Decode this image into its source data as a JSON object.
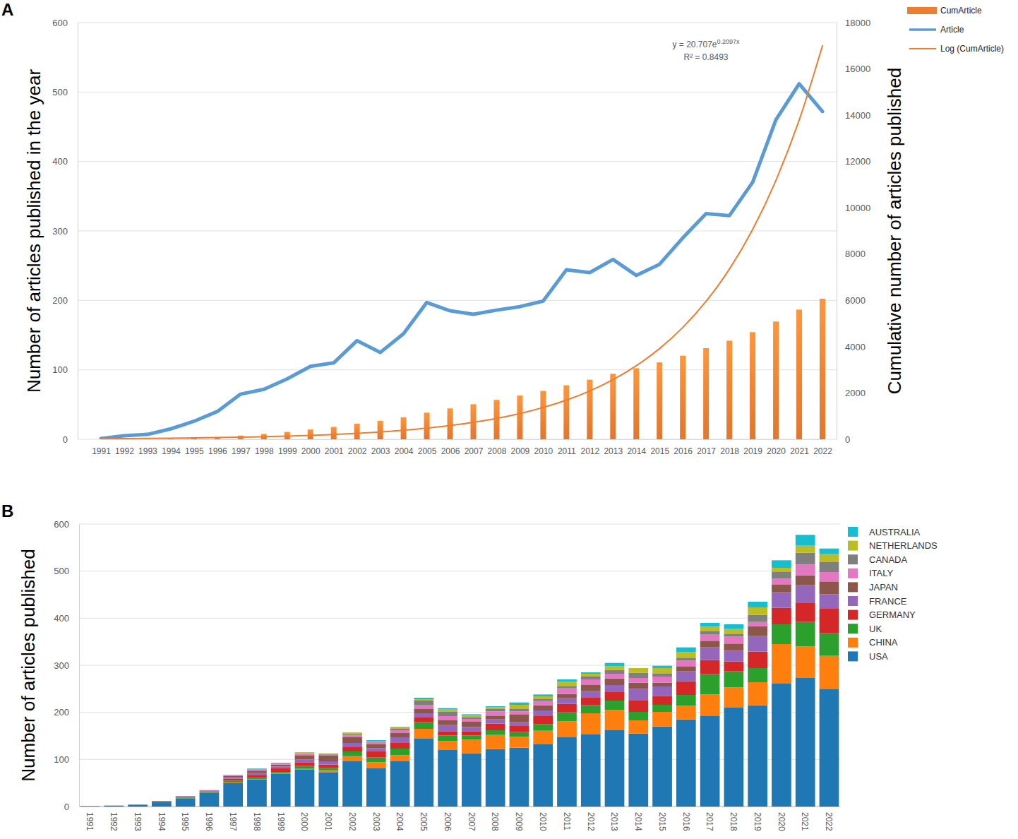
{
  "chart_data": [
    {
      "type": "bar",
      "title": "A",
      "y_label": "Number of articles published in the year",
      "y2_label": "Cumulative number of articles published",
      "annotations": [
        {
          "text": "y = 20.707e",
          "superscript": "0.2097x"
        },
        {
          "text": "R² = 0.8493"
        }
      ],
      "categories": [
        "1991",
        "1992",
        "1993",
        "1994",
        "1995",
        "1996",
        "1997",
        "1998",
        "1999",
        "2000",
        "2001",
        "2002",
        "2003",
        "2004",
        "2005",
        "2006",
        "2007",
        "2008",
        "2009",
        "2010",
        "2011",
        "2012",
        "2013",
        "2014",
        "2015",
        "2016",
        "2017",
        "2018",
        "2019",
        "2020",
        "2021",
        "2022"
      ],
      "series": [
        {
          "name": "CumArticle",
          "type": "bar",
          "axis": "y2",
          "color": "#ed7d31",
          "values": [
            1,
            6,
            13,
            28,
            54,
            94,
            159,
            231,
            318,
            423,
            533,
            675,
            800,
            952,
            1149,
            1334,
            1514,
            1700,
            1891,
            2090,
            2334,
            2574,
            2833,
            3069,
            3321,
            3611,
            3936,
            4258,
            4628,
            5088,
            5600,
            6072
          ]
        },
        {
          "name": "Article",
          "type": "line",
          "color": "#5b9bd5",
          "line_style": "solid",
          "values": [
            1,
            5,
            7,
            15,
            26,
            40,
            65,
            72,
            87,
            105,
            110,
            142,
            125,
            152,
            197,
            185,
            180,
            186,
            191,
            199,
            244,
            240,
            259,
            236,
            252,
            290,
            325,
            322,
            370,
            460,
            512,
            472
          ]
        },
        {
          "name": "Log (CumArticle)",
          "type": "line",
          "axis": "y2",
          "color": "#ed7d31",
          "line_style": "smooth",
          "values": [
            26,
            32,
            39,
            48,
            59,
            73,
            90,
            111,
            137,
            169,
            208,
            256,
            316,
            390,
            481,
            593,
            732,
            903,
            1113,
            1373,
            1693,
            2088,
            2575,
            3176,
            3917,
            4831,
            5958,
            7348,
            9062,
            11177,
            13785,
            17001
          ]
        }
      ],
      "ylim": [
        0,
        600
      ],
      "yticks": [
        0,
        100,
        200,
        300,
        400,
        500,
        600
      ],
      "y2lim": [
        0,
        18000
      ],
      "y2ticks": [
        0,
        2000,
        4000,
        6000,
        8000,
        10000,
        12000,
        14000,
        16000,
        18000
      ],
      "grid": true,
      "legend": "top-right"
    },
    {
      "type": "bar",
      "title": "B",
      "stacked": true,
      "y_label": "Number of articles published",
      "categories": [
        "1991",
        "1992",
        "1993",
        "1994",
        "1995",
        "1996",
        "1997",
        "1998",
        "1999",
        "2000",
        "2001",
        "2002",
        "2003",
        "2004",
        "2005",
        "2006",
        "2007",
        "2008",
        "2009",
        "2010",
        "2011",
        "2012",
        "2013",
        "2014",
        "2015",
        "2016",
        "2017",
        "2018",
        "2019",
        "2020",
        "2021",
        "2022"
      ],
      "series": [
        {
          "name": "USA",
          "color": "#1f77b4",
          "values": [
            1,
            2,
            4,
            10,
            17,
            29,
            50,
            57,
            69,
            78,
            72,
            97,
            82,
            97,
            145,
            120,
            113,
            122,
            125,
            133,
            147,
            153,
            163,
            155,
            170,
            185,
            193,
            210,
            215,
            262,
            273,
            250
          ]
        },
        {
          "name": "CHINA",
          "color": "#ff7f0e",
          "values": [
            0,
            0,
            0,
            0,
            0,
            0,
            1,
            1,
            1,
            2,
            5,
            10,
            12,
            12,
            20,
            19,
            29,
            30,
            23,
            28,
            34,
            45,
            42,
            28,
            31,
            29,
            45,
            43,
            49,
            83,
            67,
            70
          ]
        },
        {
          "name": "UK",
          "color": "#2ca02c",
          "values": [
            0,
            0,
            0,
            1,
            2,
            2,
            4,
            3,
            3,
            6,
            5,
            10,
            10,
            14,
            14,
            12,
            9,
            10,
            10,
            14,
            19,
            17,
            20,
            18,
            15,
            23,
            43,
            34,
            30,
            42,
            52,
            48
          ]
        },
        {
          "name": "GERMANY",
          "color": "#d62728",
          "values": [
            0,
            0,
            0,
            0,
            1,
            1,
            4,
            5,
            9,
            8,
            7,
            9,
            14,
            12,
            10,
            9,
            9,
            14,
            13,
            17,
            18,
            16,
            18,
            24,
            19,
            29,
            30,
            21,
            35,
            35,
            40,
            52
          ]
        },
        {
          "name": "FRANCE",
          "color": "#9467bd",
          "values": [
            0,
            0,
            0,
            0,
            1,
            1,
            3,
            5,
            3,
            6,
            7,
            9,
            6,
            12,
            9,
            13,
            9,
            9,
            8,
            12,
            12,
            14,
            15,
            25,
            20,
            21,
            27,
            23,
            33,
            33,
            38,
            31
          ]
        },
        {
          "name": "JAPAN",
          "color": "#8c564b",
          "values": [
            0,
            0,
            0,
            1,
            1,
            1,
            3,
            5,
            4,
            9,
            12,
            12,
            8,
            9,
            9,
            11,
            11,
            8,
            17,
            11,
            9,
            13,
            14,
            13,
            8,
            11,
            14,
            15,
            21,
            16,
            21,
            27
          ]
        },
        {
          "name": "ITALY",
          "color": "#e377c2",
          "values": [
            0,
            0,
            0,
            0,
            0,
            1,
            1,
            2,
            3,
            3,
            2,
            4,
            5,
            6,
            8,
            8,
            6,
            9,
            6,
            9,
            12,
            12,
            10,
            10,
            13,
            12,
            13,
            15,
            9,
            13,
            23,
            20
          ]
        },
        {
          "name": "CANADA",
          "color": "#7f7f7f",
          "values": [
            0,
            0,
            0,
            0,
            0,
            0,
            1,
            1,
            1,
            1,
            2,
            3,
            1,
            4,
            10,
            9,
            4,
            5,
            5,
            4,
            4,
            7,
            8,
            11,
            6,
            6,
            7,
            6,
            15,
            15,
            25,
            21
          ]
        },
        {
          "name": "NETHERLANDS",
          "color": "#bcbd22",
          "values": [
            0,
            0,
            0,
            0,
            0,
            0,
            0,
            1,
            0,
            1,
            1,
            2,
            1,
            2,
            3,
            5,
            4,
            4,
            9,
            6,
            10,
            5,
            8,
            10,
            12,
            12,
            10,
            10,
            16,
            8,
            15,
            17
          ]
        },
        {
          "name": "AUSTRALIA",
          "color": "#17becf",
          "values": [
            0,
            0,
            0,
            0,
            0,
            0,
            0,
            1,
            0,
            1,
            0,
            1,
            2,
            1,
            3,
            3,
            2,
            2,
            5,
            4,
            5,
            3,
            7,
            0,
            5,
            10,
            8,
            10,
            12,
            16,
            23,
            12
          ]
        }
      ],
      "ylim": [
        0,
        600
      ],
      "yticks": [
        0,
        100,
        200,
        300,
        400,
        500,
        600
      ],
      "grid": true,
      "legend": "right"
    }
  ]
}
